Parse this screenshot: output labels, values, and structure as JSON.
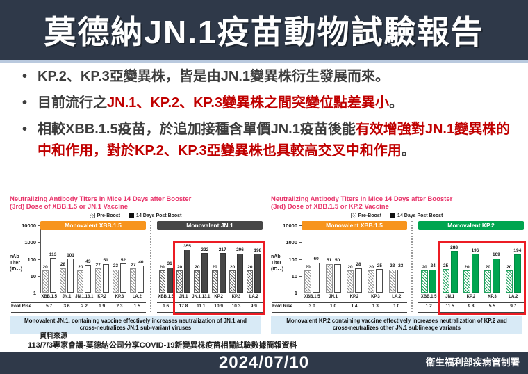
{
  "colors": {
    "navy": "#2F3949",
    "divider_blue": "#B9C9DE",
    "dark_text": "#3D3D3D",
    "red_text": "#C00000",
    "chart_title_red": "#E8356B",
    "orange": "#F7941D",
    "dark_gray": "#474747",
    "green": "#00A550",
    "highlight_red": "#EC1C24",
    "caption_bg": "#D8EAF6"
  },
  "header": {
    "title": "莫德納JN.1疫苗動物試驗報告"
  },
  "bullets": {
    "marker": "•",
    "items": [
      {
        "segments": [
          {
            "text": "KP.2、KP.3亞變異株，皆是由JN.1變異株衍生發展而來。",
            "style": "dark"
          }
        ]
      },
      {
        "segments": [
          {
            "text": "目前流行之",
            "style": "dark"
          },
          {
            "text": "JN.1、KP.2、KP.3變異株之間突變位點差異小",
            "style": "red"
          },
          {
            "text": "。",
            "style": "dark"
          }
        ]
      },
      {
        "segments": [
          {
            "text": "相較XBB.1.5疫苗，於追加接種含單價JN.1疫苗後能",
            "style": "dark"
          },
          {
            "text": "有效增強對JN.1變異株的中和作用，對於KP.2、KP.3亞變異株也具較高交叉中和作用",
            "style": "red"
          },
          {
            "text": "。",
            "style": "dark"
          }
        ]
      }
    ]
  },
  "chart_data": [
    {
      "type": "bar",
      "yscale": "log",
      "ylim": [
        1,
        10000
      ],
      "yticks": [
        "10000",
        "1000",
        "100",
        "10",
        "1"
      ],
      "ylabel": "nAb Titer (ID50)",
      "ylabel_lines": [
        "nAb",
        "Titer",
        "(ID₅₀)"
      ],
      "title_lines": [
        "Neutralizing Antibody Titers in Mice 14 Days after Booster",
        "(3rd) Dose of XBB.1.5 or JN.1 Vaccine"
      ],
      "legend": [
        {
          "label": "Pre-Boost",
          "swatch": "hatch"
        },
        {
          "label": "14 Days Post Boost",
          "swatch": "solid"
        }
      ],
      "fold_label": "Fold Rise",
      "panels": [
        {
          "header": "Monovalent XBB.1.5",
          "header_color": "#F7941D",
          "pre_hatch": "#8f8f8f",
          "post_fill": "#ffffff",
          "post_border": "#4a4a4a",
          "categories": [
            "XBB.1.5",
            "JN.1",
            "JN.1.13.1",
            "KP.2",
            "KP.3",
            "LA.2"
          ],
          "pre": [
            20,
            28,
            20,
            27,
            23,
            27
          ],
          "post": [
            113,
            101,
            43,
            51,
            52,
            40
          ],
          "fold": [
            "5.7",
            "3.6",
            "2.2",
            "1.9",
            "2.3",
            "1.5"
          ]
        },
        {
          "header": "Monovalent JN.1",
          "header_color": "#474747",
          "pre_hatch": "#5f5f5f",
          "post_fill": "#474747",
          "post_border": "#333333",
          "categories": [
            "XBB.1.5",
            "JN.1",
            "JN.1.13.1",
            "KP.2",
            "KP.3",
            "LA.2"
          ],
          "pre": [
            20,
            20,
            20,
            20,
            20,
            20
          ],
          "post": [
            31,
            355,
            222,
            217,
            206,
            198
          ],
          "fold": [
            "1.6",
            "17.8",
            "11.1",
            "10.9",
            "10.3",
            "9.9"
          ],
          "highlight_from": 1
        }
      ],
      "caption": "Monovalent JN.1. containing vaccine effectively increases neutralization of JN.1 and cross-neutralizes JN.1 sub-variant viruses"
    },
    {
      "type": "bar",
      "yscale": "log",
      "ylim": [
        1,
        10000
      ],
      "yticks": [
        "10000",
        "1000",
        "100",
        "10",
        "1"
      ],
      "ylabel": "nAb Titer (ID50)",
      "ylabel_lines": [
        "nAb",
        "Titer",
        "(ID₅₀)"
      ],
      "title_lines": [
        "Neutralizing Antibody Titers in Mice 14 Days after Booster",
        "(3rd) Dose of XBB.1.5 or KP.2 Vaccine"
      ],
      "legend": [
        {
          "label": "Pre-Boost",
          "swatch": "hatch"
        },
        {
          "label": "14 Days Post Boost",
          "swatch": "solid"
        }
      ],
      "fold_label": "Fold Rise",
      "panels": [
        {
          "header": "Monovalent XBB.1.5",
          "header_color": "#F7941D",
          "pre_hatch": "#8f8f8f",
          "post_fill": "#ffffff",
          "post_border": "#4a4a4a",
          "categories": [
            "XBB.1.5",
            "JN.1",
            "KP.2",
            "KP.3",
            "LA.2"
          ],
          "pre": [
            20,
            51,
            20,
            20,
            23
          ],
          "post": [
            60,
            50,
            28,
            25,
            23
          ],
          "fold": [
            "3.0",
            "1.0",
            "1.4",
            "1.3",
            "1.0"
          ]
        },
        {
          "header": "Monovalent KP.2",
          "header_color": "#00A550",
          "pre_hatch": "#21a15d",
          "post_fill": "#00A550",
          "post_border": "#008a43",
          "categories": [
            "XBB.1.5",
            "JN.1",
            "KP.2",
            "KP.3",
            "LA.2"
          ],
          "pre": [
            20,
            25,
            20,
            20,
            20
          ],
          "post": [
            24,
            288,
            196,
            109,
            194
          ],
          "fold": [
            "1.2",
            "11.5",
            "9.8",
            "5.5",
            "9.7"
          ],
          "highlight_from": 1
        }
      ],
      "caption": "Monovalent KP.2 containing vaccine effectively increases neutralization of KP.2 and cross-neutralizes other JN.1 sublineage variants"
    }
  ],
  "source": {
    "label": "資料來源",
    "text": "113/7/3專家會議-莫德納公司分享COVID-19新變異株疫苗相關試驗數據簡報資料"
  },
  "footer": {
    "date": "2024/07/10",
    "agency": "衛生福利部疾病管制署"
  }
}
